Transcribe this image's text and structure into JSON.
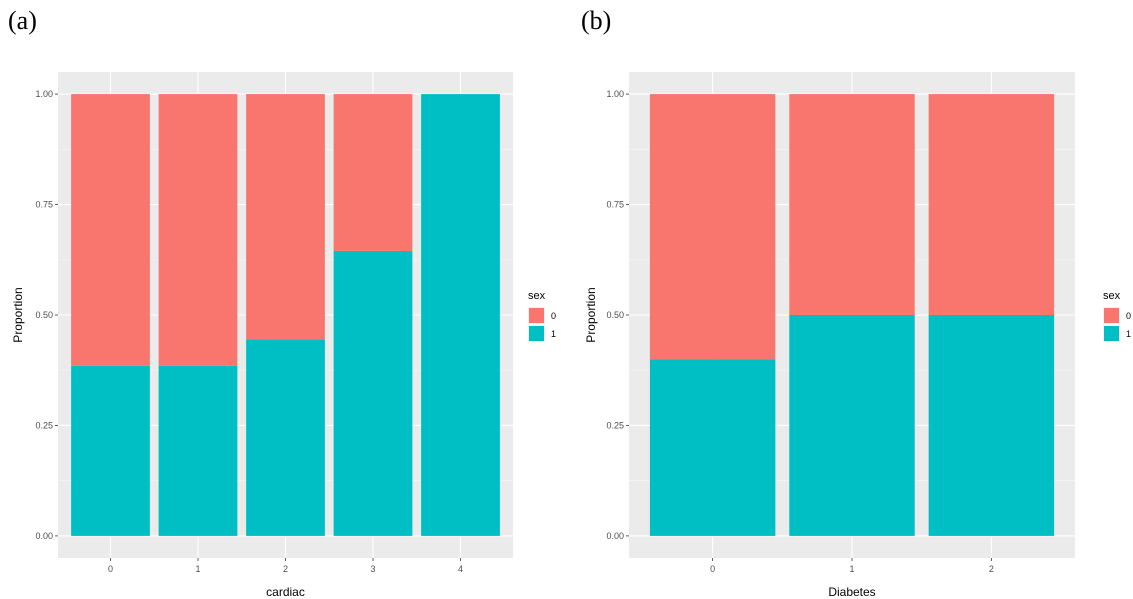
{
  "panels": [
    {
      "label": "(a)"
    },
    {
      "label": "(b)"
    }
  ],
  "chart_data": [
    {
      "type": "bar",
      "stacked": true,
      "xlabel": "cardiac",
      "ylabel": "Proportion",
      "categories": [
        "0",
        "1",
        "2",
        "3",
        "4"
      ],
      "ylim": [
        0,
        1
      ],
      "yticks": [
        "0.00",
        "0.25",
        "0.50",
        "0.75",
        "1.00"
      ],
      "grid": true,
      "legend": {
        "title": "sex",
        "position": "right",
        "entries": [
          "0",
          "1"
        ]
      },
      "series": [
        {
          "name": "0",
          "color": "#F8766D",
          "values": [
            0.615,
            0.615,
            0.555,
            0.355,
            0.0
          ]
        },
        {
          "name": "1",
          "color": "#00BFC4",
          "values": [
            0.385,
            0.385,
            0.445,
            0.645,
            1.0
          ]
        }
      ]
    },
    {
      "type": "bar",
      "stacked": true,
      "xlabel": "Diabetes",
      "ylabel": "Proportion",
      "categories": [
        "0",
        "1",
        "2"
      ],
      "ylim": [
        0,
        1
      ],
      "yticks": [
        "0.00",
        "0.25",
        "0.50",
        "0.75",
        "1.00"
      ],
      "grid": true,
      "legend": {
        "title": "sex",
        "position": "right",
        "entries": [
          "0",
          "1"
        ]
      },
      "series": [
        {
          "name": "0",
          "color": "#F8766D",
          "values": [
            0.6,
            0.5,
            0.5
          ]
        },
        {
          "name": "1",
          "color": "#00BFC4",
          "values": [
            0.4,
            0.5,
            0.5
          ]
        }
      ]
    }
  ]
}
